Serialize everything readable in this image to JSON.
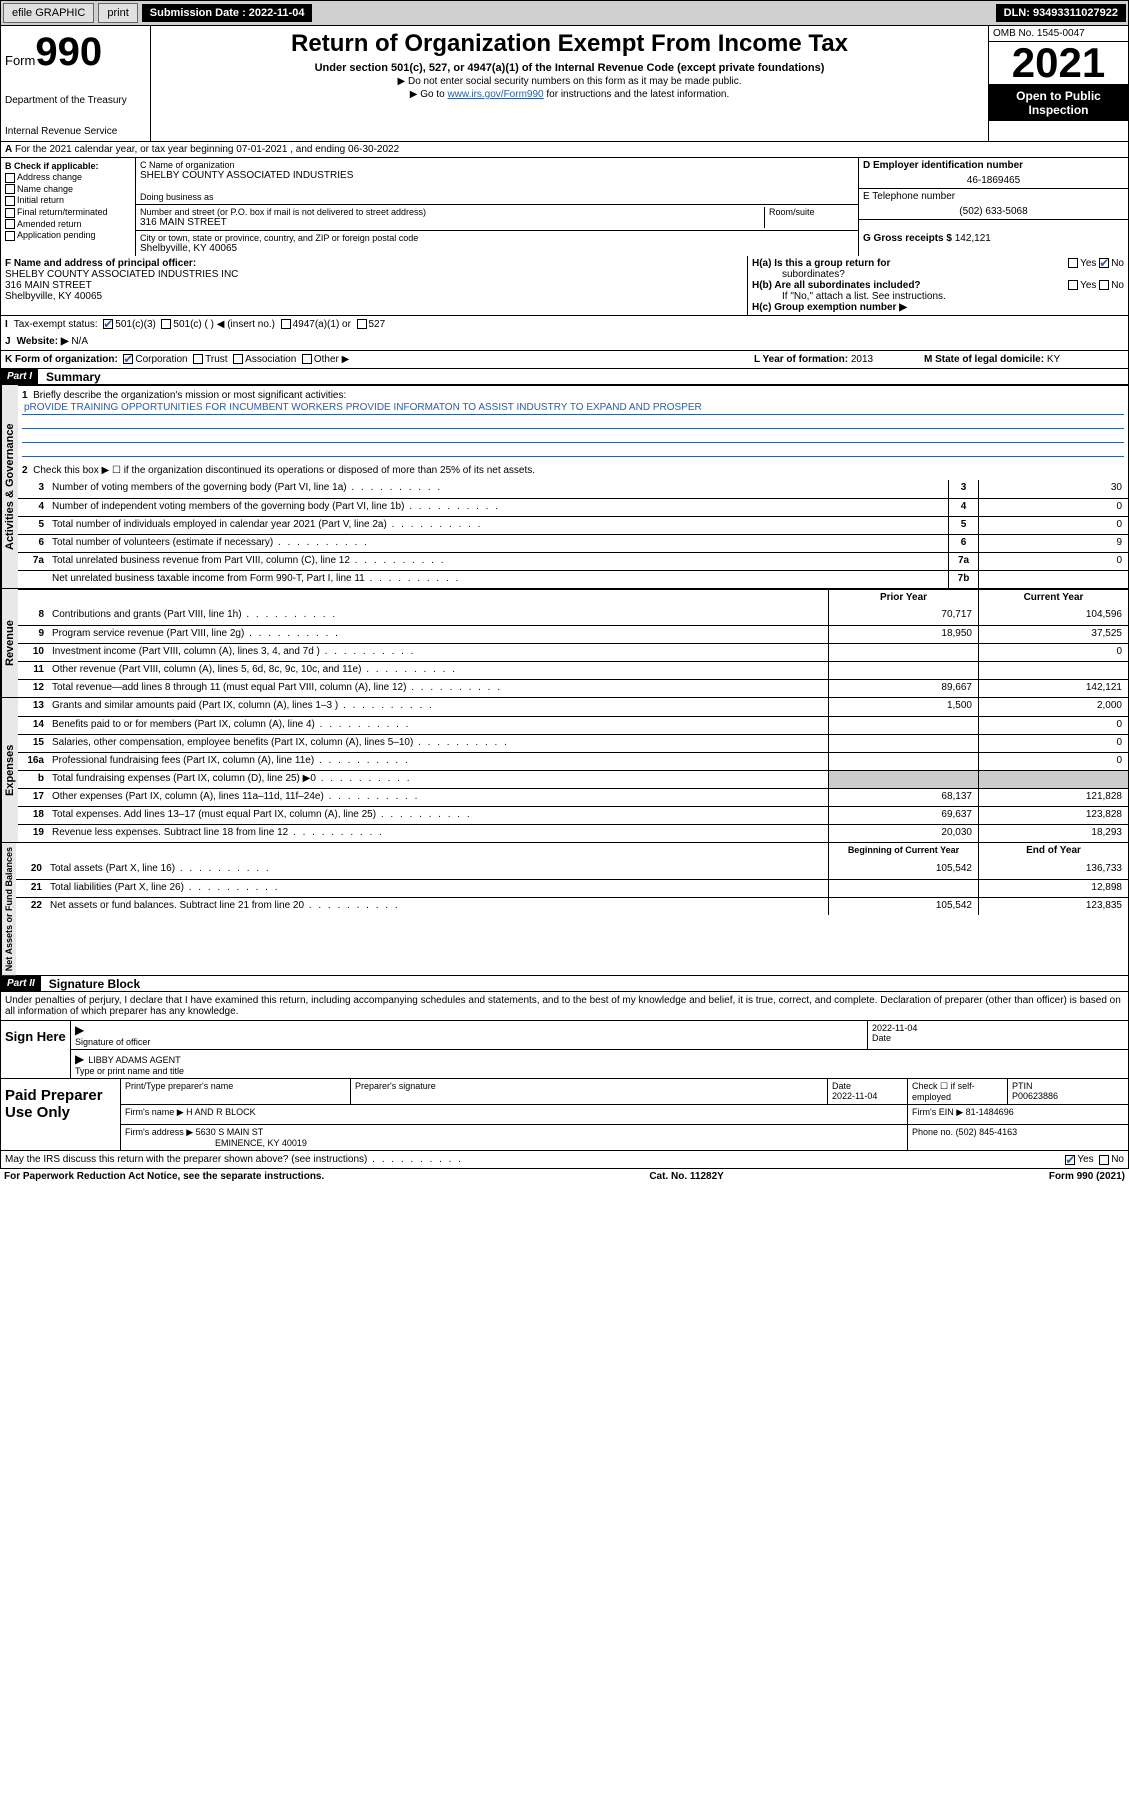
{
  "toolbar": {
    "efile": "efile GRAPHIC",
    "print": "print",
    "sub_label": "Submission Date : 2022-11-04",
    "dln": "DLN: 93493311027922"
  },
  "header": {
    "form_word": "Form",
    "form_num": "990",
    "title": "Return of Organization Exempt From Income Tax",
    "sub1": "Under section 501(c), 527, or 4947(a)(1) of the Internal Revenue Code (except private foundations)",
    "sub2": "▶ Do not enter social security numbers on this form as it may be made public.",
    "sub3_pre": "▶ Go to ",
    "sub3_link": "www.irs.gov/Form990",
    "sub3_post": " for instructions and the latest information.",
    "dept1": "Department of the Treasury",
    "dept2": "Internal Revenue Service",
    "omb": "OMB No. 1545-0047",
    "year": "2021",
    "open": "Open to Public Inspection"
  },
  "row_a": "For the 2021 calendar year, or tax year beginning 07-01-2021  , and ending 06-30-2022",
  "col_b": {
    "hdr": "B Check if applicable:",
    "items": [
      "Address change",
      "Name change",
      "Initial return",
      "Final return/terminated",
      "Amended return",
      "Application pending"
    ]
  },
  "col_c": {
    "name_lbl": "C Name of organization",
    "name": "SHELBY COUNTY ASSOCIATED INDUSTRIES",
    "dba_lbl": "Doing business as",
    "addr_lbl": "Number and street (or P.O. box if mail is not delivered to street address)",
    "room_lbl": "Room/suite",
    "addr": "316 MAIN STREET",
    "city_lbl": "City or town, state or province, country, and ZIP or foreign postal code",
    "city": "Shelbyville, KY  40065"
  },
  "col_d": {
    "ein_lbl": "D Employer identification number",
    "ein": "46-1869465",
    "tel_lbl": "E Telephone number",
    "tel": "(502) 633-5068",
    "gross_lbl": "G Gross receipts $",
    "gross": "142,121"
  },
  "row_f": {
    "lbl": "F Name and address of principal officer:",
    "l1": "SHELBY COUNTY ASSOCIATED INDUSTRIES INC",
    "l2": "316 MAIN STREET",
    "l3": "Shelbyville, KY  40065"
  },
  "row_h": {
    "ha": "H(a)  Is this a group return for",
    "ha2": "subordinates?",
    "hb": "H(b)  Are all subordinates included?",
    "hnote": "If \"No,\" attach a list. See instructions.",
    "hc": "H(c)  Group exemption number ▶",
    "yes": "Yes",
    "no": "No"
  },
  "row_i": {
    "lbl": "Tax-exempt status:",
    "opts": [
      "501(c)(3)",
      "501(c) (  ) ◀ (insert no.)",
      "4947(a)(1) or",
      "527"
    ]
  },
  "row_j": {
    "lbl": "J",
    "text": "Website: ▶",
    "val": "N/A"
  },
  "row_k": {
    "lbl": "K Form of organization:",
    "opts": [
      "Corporation",
      "Trust",
      "Association",
      "Other ▶"
    ],
    "l_lbl": "L Year of formation:",
    "l_val": "2013",
    "m_lbl": "M State of legal domicile:",
    "m_val": "KY"
  },
  "part1": {
    "hdr": "Part I",
    "title": "Summary",
    "l1_lbl": "Briefly describe the organization's mission or most significant activities:",
    "l1_val": "pROVIDE TRAINING OPPORTUNITIES FOR INCUMBENT WORKERS PROVIDE INFORMATON TO ASSIST INDUSTRY TO EXPAND AND PROSPER",
    "l2": "Check this box ▶ ☐  if the organization discontinued its operations or disposed of more than 25% of its net assets.",
    "gov_label": "Activities & Governance",
    "rev_label": "Revenue",
    "exp_label": "Expenses",
    "net_label": "Net Assets or Fund Balances",
    "col_prior": "Prior Year",
    "col_current": "Current Year",
    "col_begin": "Beginning of Current Year",
    "col_end": "End of Year",
    "lines_gov": [
      {
        "n": "3",
        "d": "Number of voting members of the governing body (Part VI, line 1a)",
        "box": "3",
        "v": "30"
      },
      {
        "n": "4",
        "d": "Number of independent voting members of the governing body (Part VI, line 1b)",
        "box": "4",
        "v": "0"
      },
      {
        "n": "5",
        "d": "Total number of individuals employed in calendar year 2021 (Part V, line 2a)",
        "box": "5",
        "v": "0"
      },
      {
        "n": "6",
        "d": "Total number of volunteers (estimate if necessary)",
        "box": "6",
        "v": "9"
      },
      {
        "n": "7a",
        "d": "Total unrelated business revenue from Part VIII, column (C), line 12",
        "box": "7a",
        "v": "0"
      },
      {
        "n": "",
        "d": "Net unrelated business taxable income from Form 990-T, Part I, line 11",
        "box": "7b",
        "v": ""
      }
    ],
    "lines_rev": [
      {
        "n": "8",
        "d": "Contributions and grants (Part VIII, line 1h)",
        "p": "70,717",
        "c": "104,596"
      },
      {
        "n": "9",
        "d": "Program service revenue (Part VIII, line 2g)",
        "p": "18,950",
        "c": "37,525"
      },
      {
        "n": "10",
        "d": "Investment income (Part VIII, column (A), lines 3, 4, and 7d )",
        "p": "",
        "c": "0"
      },
      {
        "n": "11",
        "d": "Other revenue (Part VIII, column (A), lines 5, 6d, 8c, 9c, 10c, and 11e)",
        "p": "",
        "c": ""
      },
      {
        "n": "12",
        "d": "Total revenue—add lines 8 through 11 (must equal Part VIII, column (A), line 12)",
        "p": "89,667",
        "c": "142,121"
      }
    ],
    "lines_exp": [
      {
        "n": "13",
        "d": "Grants and similar amounts paid (Part IX, column (A), lines 1–3 )",
        "p": "1,500",
        "c": "2,000"
      },
      {
        "n": "14",
        "d": "Benefits paid to or for members (Part IX, column (A), line 4)",
        "p": "",
        "c": "0"
      },
      {
        "n": "15",
        "d": "Salaries, other compensation, employee benefits (Part IX, column (A), lines 5–10)",
        "p": "",
        "c": "0"
      },
      {
        "n": "16a",
        "d": "Professional fundraising fees (Part IX, column (A), line 11e)",
        "p": "",
        "c": "0"
      },
      {
        "n": "b",
        "d": "Total fundraising expenses (Part IX, column (D), line 25) ▶0",
        "p": "shaded",
        "c": "shaded"
      },
      {
        "n": "17",
        "d": "Other expenses (Part IX, column (A), lines 11a–11d, 11f–24e)",
        "p": "68,137",
        "c": "121,828"
      },
      {
        "n": "18",
        "d": "Total expenses. Add lines 13–17 (must equal Part IX, column (A), line 25)",
        "p": "69,637",
        "c": "123,828"
      },
      {
        "n": "19",
        "d": "Revenue less expenses. Subtract line 18 from line 12",
        "p": "20,030",
        "c": "18,293"
      }
    ],
    "lines_net": [
      {
        "n": "20",
        "d": "Total assets (Part X, line 16)",
        "p": "105,542",
        "c": "136,733"
      },
      {
        "n": "21",
        "d": "Total liabilities (Part X, line 26)",
        "p": "",
        "c": "12,898"
      },
      {
        "n": "22",
        "d": "Net assets or fund balances. Subtract line 21 from line 20",
        "p": "105,542",
        "c": "123,835"
      }
    ]
  },
  "part2": {
    "hdr": "Part II",
    "title": "Signature Block",
    "decl": "Under penalties of perjury, I declare that I have examined this return, including accompanying schedules and statements, and to the best of my knowledge and belief, it is true, correct, and complete. Declaration of preparer (other than officer) is based on all information of which preparer has any knowledge.",
    "sign_here": "Sign Here",
    "sig_officer": "Signature of officer",
    "date_lbl": "Date",
    "date_val": "2022-11-04",
    "name_title": "LIBBY ADAMS  AGENT",
    "name_lbl": "Type or print name and title",
    "paid": "Paid Preparer Use Only",
    "prep_name_lbl": "Print/Type preparer's name",
    "prep_sig_lbl": "Preparer's signature",
    "prep_date": "2022-11-04",
    "prep_check": "Check ☐ if self-employed",
    "ptin_lbl": "PTIN",
    "ptin": "P00623886",
    "firm_name_lbl": "Firm's name   ▶",
    "firm_name": "H AND R BLOCK",
    "firm_ein_lbl": "Firm's EIN ▶",
    "firm_ein": "81-1484696",
    "firm_addr_lbl": "Firm's address ▶",
    "firm_addr1": "5630 S MAIN ST",
    "firm_addr2": "EMINENCE, KY  40019",
    "phone_lbl": "Phone no.",
    "phone": "(502) 845-4163",
    "discuss": "May the IRS discuss this return with the preparer shown above? (see instructions)",
    "yes": "Yes",
    "no": "No"
  },
  "footer": {
    "left": "For Paperwork Reduction Act Notice, see the separate instructions.",
    "mid": "Cat. No. 11282Y",
    "right": "Form 990 (2021)"
  }
}
